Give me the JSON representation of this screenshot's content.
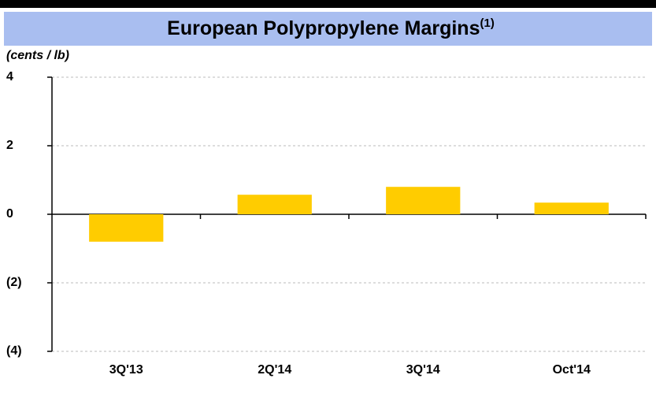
{
  "chart_data": {
    "type": "bar",
    "title": "European Polypropylene Margins",
    "title_superscript": "(1)",
    "y_label": "(cents / lb)",
    "categories": [
      "3Q'13",
      "2Q'14",
      "3Q'14",
      "Oct'14"
    ],
    "values": [
      -0.8,
      0.57,
      0.8,
      0.34
    ],
    "color": "#ffcc00",
    "ylim": [
      -4,
      4
    ],
    "yticks": [
      {
        "value": -4,
        "label": "(4)"
      },
      {
        "value": -2,
        "label": "(2)"
      },
      0,
      2,
      4
    ],
    "grid": true
  }
}
